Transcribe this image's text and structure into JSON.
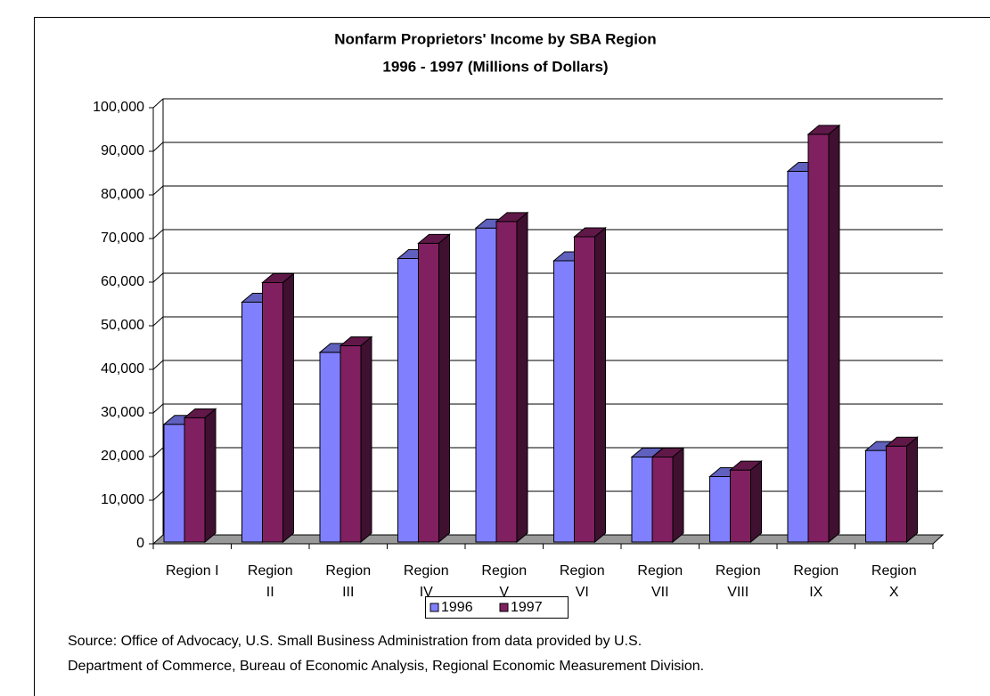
{
  "chart_data": {
    "type": "bar3d",
    "title": "Nonfarm Proprietors' Income by SBA Region",
    "subtitle": "1996 - 1997 (Millions of Dollars)",
    "categories": [
      "Region I",
      "Region II",
      "Region III",
      "Region IV",
      "Region V",
      "Region VI",
      "Region VII",
      "Region VIII",
      "Region IX",
      "Region X"
    ],
    "series": [
      {
        "name": "1996",
        "color": "#8080ff",
        "values": [
          27000,
          55000,
          43500,
          65000,
          72000,
          64500,
          19500,
          15000,
          85000,
          21000
        ]
      },
      {
        "name": "1997",
        "color": "#802060",
        "values": [
          28500,
          59500,
          45000,
          68500,
          73500,
          70000,
          19500,
          16500,
          93500,
          22000
        ]
      }
    ],
    "ylim": [
      0,
      100000
    ],
    "yticks": [
      0,
      {
        "value": 10000,
        "label": "10,000"
      },
      {
        "value": 20000,
        "label": "20,000"
      },
      {
        "value": 30000,
        "label": "30,000"
      },
      {
        "value": 40000,
        "label": "40,000"
      },
      {
        "value": 50000,
        "label": "50,000"
      },
      {
        "value": 60000,
        "label": "60,000"
      },
      {
        "value": 70000,
        "label": "70,000"
      },
      {
        "value": 80000,
        "label": "80,000"
      },
      {
        "value": 90000,
        "label": "90,000"
      },
      {
        "value": 100000,
        "label": "100,000"
      }
    ],
    "grid": true,
    "legend": "bottom",
    "notes": [
      "Source:  Office of Advocacy, U.S. Small Business Administration from data provided by U.S.",
      "Department of Commerce, Bureau of Economic Analysis, Regional Economic Measurement Division."
    ]
  }
}
